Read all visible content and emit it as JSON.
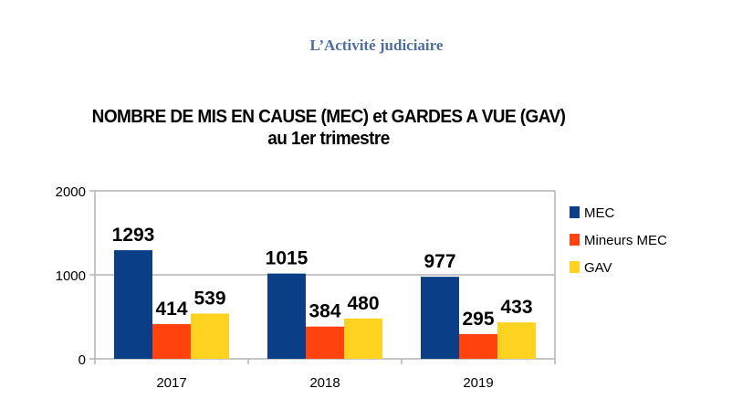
{
  "page": {
    "heading": "L’Activité judiciaire"
  },
  "chart_data": {
    "type": "bar",
    "title": "NOMBRE DE MIS EN CAUSE (MEC) et GARDES A VUE (GAV)",
    "subtitle": "au 1er trimestre",
    "categories": [
      "2017",
      "2018",
      "2019"
    ],
    "series": [
      {
        "name": "MEC",
        "color": "#0a3f87",
        "values": [
          1293,
          1015,
          977
        ]
      },
      {
        "name": "Mineurs MEC",
        "color": "#ff420e",
        "values": [
          414,
          384,
          295
        ]
      },
      {
        "name": "GAV",
        "color": "#ffd320",
        "values": [
          539,
          480,
          433
        ]
      }
    ],
    "yticks": [
      "0",
      "1000",
      "2000"
    ],
    "ylim": [
      0,
      2000
    ],
    "xlabel": "",
    "ylabel": "",
    "grid": true,
    "legend": "right"
  }
}
